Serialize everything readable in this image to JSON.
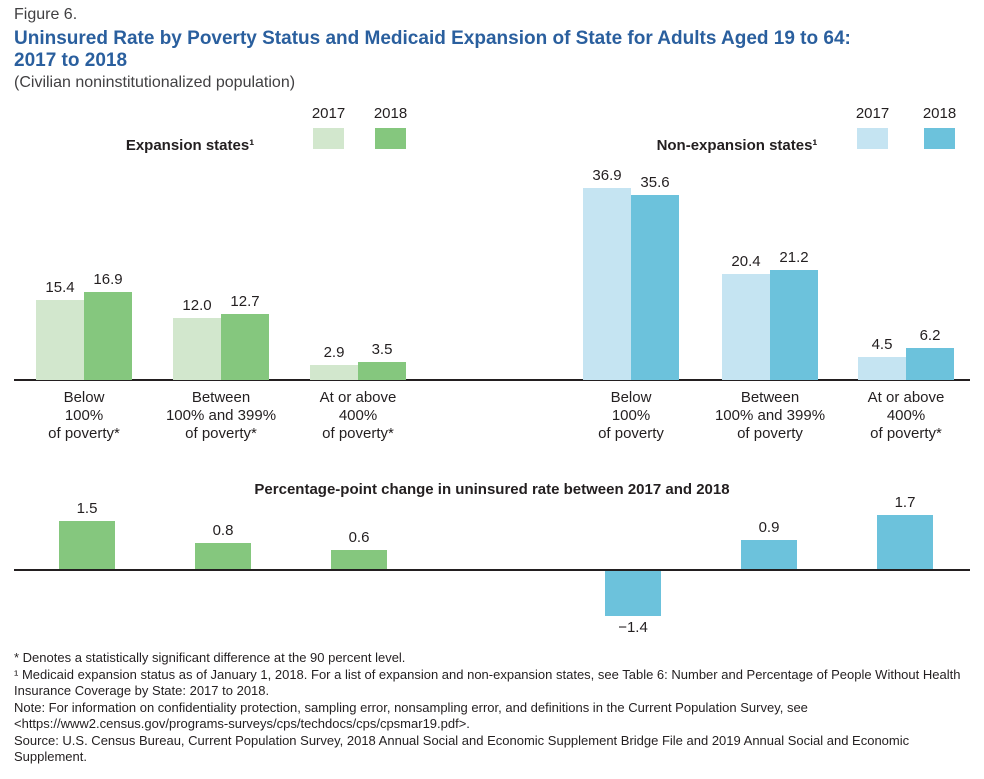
{
  "header": {
    "figure_label": "Figure 6.",
    "title_line1": "Uninsured Rate by Poverty Status and Medicaid Expansion of State for Adults Aged 19 to 64:",
    "title_line2": "2017 to 2018",
    "subtitle": "(Civilian noninstitutionalized population)"
  },
  "colors": {
    "title_blue": "#2a5f9e",
    "expansion_2017": "#d2e7cd",
    "expansion_2018": "#85c77e",
    "non_expansion_2017": "#c5e4f2",
    "non_expansion_2018": "#6cc2dc",
    "axis_line": "#231f20",
    "text": "#231f20"
  },
  "chart_data": [
    {
      "type": "bar",
      "title": "Expansion states¹",
      "legend": [
        "2017",
        "2018"
      ],
      "categories": [
        [
          "Below",
          "100%",
          "of poverty*"
        ],
        [
          "Between",
          "100% and 399%",
          "of poverty*"
        ],
        [
          "At or above",
          "400%",
          "of poverty*"
        ]
      ],
      "series": [
        {
          "name": "2017",
          "values": [
            15.4,
            12.0,
            2.9
          ],
          "labels": [
            "15.4",
            "12.0",
            "2.9"
          ]
        },
        {
          "name": "2018",
          "values": [
            16.9,
            12.7,
            3.5
          ],
          "labels": [
            "16.9",
            "12.7",
            "3.5"
          ]
        }
      ],
      "ylim": [
        0,
        40
      ],
      "grid": false,
      "legend_position": "top-right"
    },
    {
      "type": "bar",
      "title": "Non-expansion states¹",
      "legend": [
        "2017",
        "2018"
      ],
      "categories": [
        [
          "Below",
          "100%",
          "of poverty"
        ],
        [
          "Between",
          "100% and 399%",
          "of poverty"
        ],
        [
          "At or above",
          "400%",
          "of poverty*"
        ]
      ],
      "series": [
        {
          "name": "2017",
          "values": [
            36.9,
            20.4,
            4.5
          ],
          "labels": [
            "36.9",
            "20.4",
            "4.5"
          ]
        },
        {
          "name": "2018",
          "values": [
            35.6,
            21.2,
            6.2
          ],
          "labels": [
            "35.6",
            "21.2",
            "6.2"
          ]
        }
      ],
      "ylim": [
        0,
        40
      ],
      "grid": false,
      "legend_position": "top-right"
    },
    {
      "type": "bar",
      "title": "Percentage-point change in uninsured rate between 2017 and 2018",
      "values": [
        1.5,
        0.8,
        0.6,
        -1.4,
        0.9,
        1.7
      ],
      "labels": [
        "1.5",
        "0.8",
        "0.6",
        "−1.4",
        "0.9",
        "1.7"
      ],
      "group_colors": [
        "expansion",
        "expansion",
        "expansion",
        "non_expansion",
        "non_expansion",
        "non_expansion"
      ],
      "ylim": [
        -2,
        2
      ],
      "grid": false
    }
  ],
  "footnotes": [
    "* Denotes a statistically significant difference at the 90 percent level.",
    "¹ Medicaid expansion status as of January 1, 2018. For a list of expansion and non-expansion states, see Table 6: Number and Percentage of People Without Health Insurance Coverage by State: 2017 to 2018.",
    "Note: For information on confidentiality protection, sampling error, nonsampling error, and definitions in the Current Population Survey, see <https://www2.census.gov/programs-surveys/cps/techdocs/cps/cpsmar19.pdf>.",
    "Source: U.S. Census Bureau, Current Population Survey, 2018 Annual Social and Economic Supplement Bridge File and 2019 Annual Social and Economic Supplement."
  ]
}
